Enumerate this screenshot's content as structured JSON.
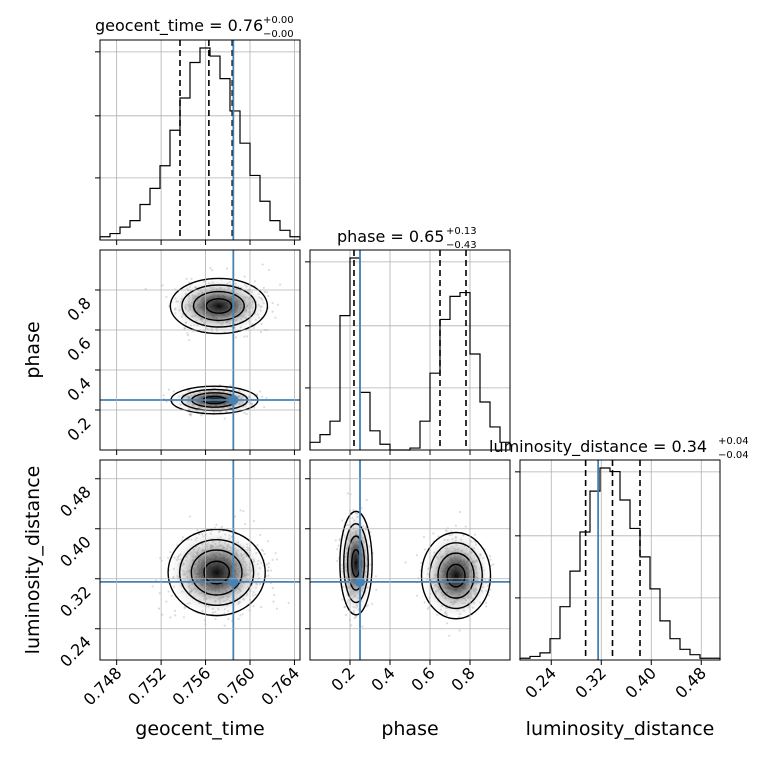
{
  "chart_data": {
    "type": "corner",
    "parameters": [
      "geocent_time",
      "phase",
      "luminosity_distance"
    ],
    "truths": {
      "geocent_time": 0.7585,
      "phase": 0.25,
      "luminosity_distance": 0.315
    },
    "titles": {
      "geocent_time": {
        "text": "geocent_time = 0.76",
        "sup": "+0.00",
        "sub": "−0.00"
      },
      "phase": {
        "text": "phase = 0.65",
        "sup": "+0.13",
        "sub": "−0.43"
      },
      "luminosity_distance": {
        "text": "luminosity_distance = 0.34",
        "sup": "+0.04",
        "sub": "−0.04"
      }
    },
    "axes": {
      "geocent_time": {
        "range": [
          0.7465,
          0.7645
        ],
        "ticks": [
          "0.748",
          "0.752",
          "0.756",
          "0.760",
          "0.764"
        ],
        "tick_values": [
          0.748,
          0.752,
          0.756,
          0.76,
          0.764
        ]
      },
      "phase": {
        "range": [
          0.0,
          1.0
        ],
        "ticks": [
          "0.2",
          "0.4",
          "0.6",
          "0.8"
        ],
        "tick_values": [
          0.2,
          0.4,
          0.6,
          0.8
        ]
      },
      "luminosity_distance": {
        "range": [
          0.19,
          0.51
        ],
        "ticks": [
          "0.24",
          "0.32",
          "0.40",
          "0.48"
        ],
        "tick_values": [
          0.24,
          0.32,
          0.4,
          0.48
        ]
      }
    },
    "histograms": {
      "geocent_time": {
        "quantiles": [
          0.7537,
          0.7563,
          0.7584
        ],
        "bin_edges": [
          0.7465,
          0.7474,
          0.7483,
          0.7492,
          0.7501,
          0.751,
          0.7519,
          0.7528,
          0.7537,
          0.7546,
          0.7555,
          0.7564,
          0.7573,
          0.7582,
          0.7591,
          0.76,
          0.7609,
          0.7618,
          0.7627,
          0.7636,
          0.7645
        ],
        "counts": [
          2,
          4,
          8,
          12,
          22,
          32,
          46,
          68,
          88,
          110,
          119,
          114,
          100,
          80,
          60,
          40,
          24,
          12,
          6,
          2
        ]
      },
      "phase": {
        "quantiles": [
          0.22,
          0.65,
          0.78
        ],
        "bin_edges": [
          0,
          0.05,
          0.1,
          0.15,
          0.2,
          0.25,
          0.3,
          0.35,
          0.4,
          0.45,
          0.5,
          0.55,
          0.6,
          0.65,
          0.7,
          0.75,
          0.8,
          0.85,
          0.9,
          0.95,
          1.0
        ],
        "counts": [
          4,
          8,
          15,
          70,
          100,
          30,
          10,
          3,
          0,
          0,
          1,
          15,
          40,
          68,
          80,
          82,
          50,
          25,
          12,
          4
        ]
      },
      "luminosity_distance": {
        "quantiles": [
          0.295,
          0.338,
          0.382
        ],
        "bin_edges": [
          0.19,
          0.206,
          0.222,
          0.238,
          0.254,
          0.27,
          0.286,
          0.302,
          0.318,
          0.334,
          0.35,
          0.366,
          0.382,
          0.398,
          0.414,
          0.43,
          0.446,
          0.462,
          0.478,
          0.494,
          0.51
        ],
        "counts": [
          1,
          2,
          4,
          12,
          30,
          50,
          72,
          95,
          108,
          106,
          90,
          74,
          58,
          40,
          22,
          12,
          6,
          3,
          1,
          1
        ]
      }
    },
    "grid": true
  }
}
